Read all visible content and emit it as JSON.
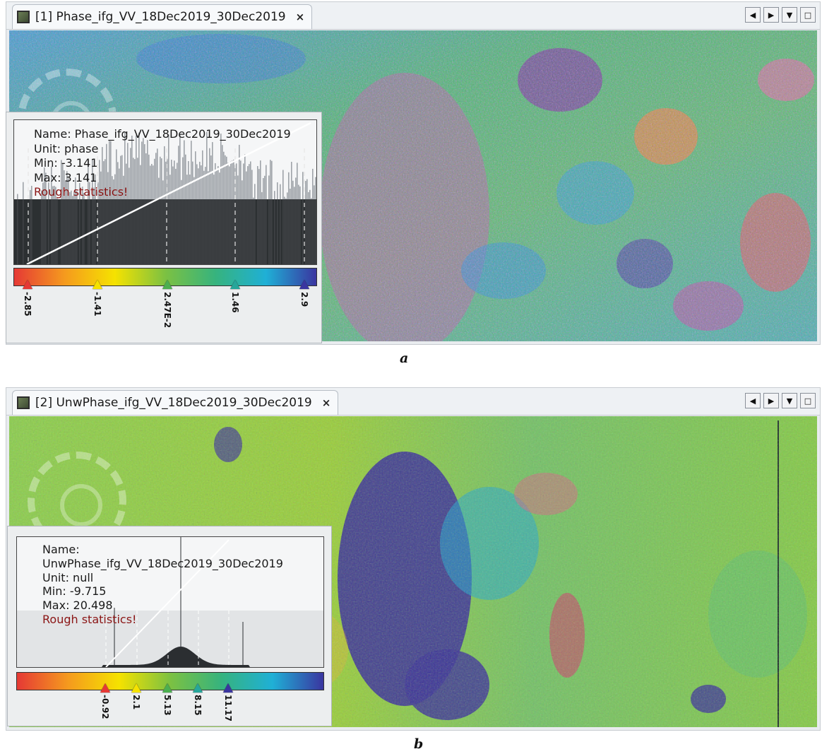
{
  "panel_a": {
    "tab_title": "[1] Phase_ifg_VV_18Dec2019_30Dec2019",
    "close_glyph": "×",
    "controls": [
      "◀",
      "▶",
      "▼",
      "□"
    ],
    "stats": {
      "name": "Name: Phase_ifg_VV_18Dec2019_30Dec2019",
      "unit": "Unit: phase",
      "min": "Min: -3.141",
      "max": "Max: 3.141",
      "rough": "Rough statistics!"
    },
    "color_markers": [
      {
        "label": "-2.85",
        "color": "#e53935"
      },
      {
        "label": "-1.41",
        "color": "#f5e200"
      },
      {
        "label": "2.47E-2",
        "color": "#4caf50"
      },
      {
        "label": "1.46",
        "color": "#26a69a"
      },
      {
        "label": "2.9",
        "color": "#3a35a0"
      }
    ],
    "caption": "a"
  },
  "panel_b": {
    "tab_title": "[2] UnwPhase_ifg_VV_18Dec2019_30Dec2019",
    "close_glyph": "×",
    "controls": [
      "◀",
      "▶",
      "▼",
      "□"
    ],
    "stats": {
      "name": "Name: UnwPhase_ifg_VV_18Dec2019_30Dec2019",
      "unit": "Unit: null",
      "min": "Min: -9.715",
      "max": "Max: 20.498",
      "rough": "Rough statistics!"
    },
    "color_markers": [
      {
        "label": "-0.92",
        "color": "#e53935"
      },
      {
        "label": "2.1",
        "color": "#f5e200"
      },
      {
        "label": "5.13",
        "color": "#4caf50"
      },
      {
        "label": "8.15",
        "color": "#26a69a"
      },
      {
        "label": "11.17",
        "color": "#3a35a0"
      }
    ],
    "caption": "b"
  },
  "colors": {
    "ramp": [
      "#e53935",
      "#f59a1e",
      "#f5e200",
      "#7cc142",
      "#36b37e",
      "#1fb0d6",
      "#3a35a0"
    ]
  }
}
